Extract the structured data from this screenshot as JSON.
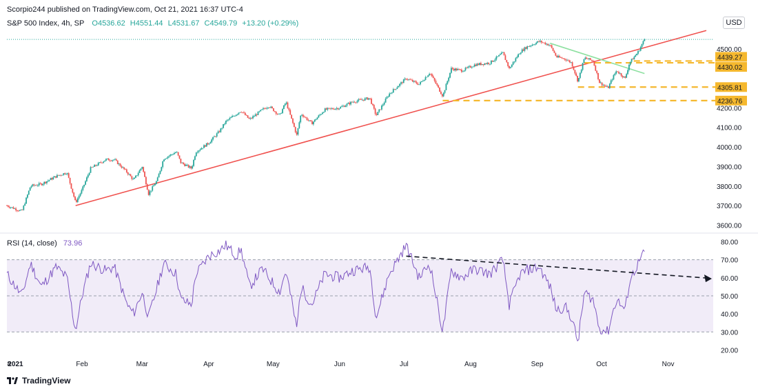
{
  "header": {
    "published": "Scorpio244 published on TradingView.com, Oct 21, 2021 16:37 UTC-4"
  },
  "legend": {
    "symbol": "S&P 500 Index, 4h, SP",
    "open": "O4536.62",
    "high": "H4551.44",
    "low": "L4531.67",
    "close": "C4549.79",
    "change": "+13.20 (+0.29%)"
  },
  "currency": "USD",
  "rsi_legend": {
    "label": "RSI (14, close)",
    "value": "73.96"
  },
  "footer": {
    "brand": "TradingView"
  },
  "colors": {
    "up": "#26a69a",
    "down": "#ef5350",
    "trendline": "#f0524f",
    "support": "#f5b82e",
    "channel": "#8de0a0",
    "rsi": "#7e57c2",
    "rsi_band": "#ede7f6"
  },
  "chart_data": [
    {
      "type": "candlestick",
      "title": "S&P 500 Index, 4h, SP",
      "x_ticks": [
        "8",
        "2021",
        "Feb",
        "Mar",
        "Apr",
        "May",
        "Jun",
        "Jul",
        "Aug",
        "Sep",
        "Oct",
        "Nov"
      ],
      "y_ticks": [
        "3600.00",
        "3700.00",
        "3800.00",
        "3900.00",
        "4000.00",
        "4100.00",
        "4200.00",
        "4300.00",
        "4400.00",
        "4500.00"
      ],
      "ylim": [
        3570,
        4610
      ],
      "price_labels": [
        {
          "value": 4439.27,
          "label": "4439.27"
        },
        {
          "value": 4430.02,
          "label": "4430.02"
        },
        {
          "value": 4305.81,
          "label": "4305.81"
        },
        {
          "value": 4236.76,
          "label": "4236.76"
        }
      ],
      "last_close": 4549.79,
      "approx_close_path": [
        [
          "Dec 28",
          3700
        ],
        [
          "Jan 4",
          3670
        ],
        [
          "Jan 8",
          3800
        ],
        [
          "Jan 13",
          3810
        ],
        [
          "Jan 20",
          3850
        ],
        [
          "Jan 25",
          3870
        ],
        [
          "Jan 29",
          3715
        ],
        [
          "Feb 1",
          3780
        ],
        [
          "Feb 5",
          3890
        ],
        [
          "Feb 12",
          3935
        ],
        [
          "Feb 16",
          3935
        ],
        [
          "Feb 22",
          3870
        ],
        [
          "Feb 25",
          3830
        ],
        [
          "Mar 1",
          3900
        ],
        [
          "Mar 4",
          3760
        ],
        [
          "Mar 8",
          3830
        ],
        [
          "Mar 11",
          3940
        ],
        [
          "Mar 17",
          3975
        ],
        [
          "Mar 19",
          3920
        ],
        [
          "Mar 24",
          3890
        ],
        [
          "Mar 26",
          3975
        ],
        [
          "Apr 1",
          4020
        ],
        [
          "Apr 6",
          4080
        ],
        [
          "Apr 9",
          4130
        ],
        [
          "Apr 16",
          4185
        ],
        [
          "Apr 20",
          4140
        ],
        [
          "Apr 26",
          4190
        ],
        [
          "Apr 29",
          4210
        ],
        [
          "May 4",
          4160
        ],
        [
          "May 7",
          4230
        ],
        [
          "May 12",
          4060
        ],
        [
          "May 14",
          4170
        ],
        [
          "May 19",
          4120
        ],
        [
          "May 25",
          4190
        ],
        [
          "Jun 1",
          4200
        ],
        [
          "Jun 7",
          4230
        ],
        [
          "Jun 15",
          4250
        ],
        [
          "Jun 18",
          4160
        ],
        [
          "Jun 24",
          4270
        ],
        [
          "Jul 2",
          4350
        ],
        [
          "Jul 8",
          4320
        ],
        [
          "Jul 13",
          4380
        ],
        [
          "Jul 19",
          4260
        ],
        [
          "Jul 23",
          4400
        ],
        [
          "Jul 28",
          4390
        ],
        [
          "Aug 3",
          4420
        ],
        [
          "Aug 10",
          4430
        ],
        [
          "Aug 16",
          4480
        ],
        [
          "Aug 19",
          4400
        ],
        [
          "Aug 24",
          4485
        ],
        [
          "Aug 27",
          4510
        ],
        [
          "Sep 2",
          4540
        ],
        [
          "Sep 7",
          4520
        ],
        [
          "Sep 10",
          4460
        ],
        [
          "Sep 14",
          4450
        ],
        [
          "Sep 17",
          4430
        ],
        [
          "Sep 20",
          4335
        ],
        [
          "Sep 23",
          4455
        ],
        [
          "Sep 27",
          4440
        ],
        [
          "Sep 30",
          4330
        ],
        [
          "Oct 4",
          4300
        ],
        [
          "Oct 6",
          4350
        ],
        [
          "Oct 8",
          4390
        ],
        [
          "Oct 12",
          4350
        ],
        [
          "Oct 14",
          4430
        ],
        [
          "Oct 18",
          4485
        ],
        [
          "Oct 21",
          4549.79
        ]
      ]
    },
    {
      "type": "line",
      "title": "RSI (14, close)",
      "y_ticks": [
        "20.00",
        "30.00",
        "40.00",
        "50.00",
        "60.00",
        "70.00",
        "80.00"
      ],
      "ylim": [
        16,
        84
      ],
      "band": [
        30,
        70
      ],
      "midline": 50,
      "last_value": 73.96,
      "approx_values": [
        [
          "Dec 28",
          62
        ],
        [
          "Jan 4",
          50
        ],
        [
          "Jan 8",
          68
        ],
        [
          "Jan 13",
          55
        ],
        [
          "Jan 20",
          66
        ],
        [
          "Jan 25",
          60
        ],
        [
          "Jan 28",
          37
        ],
        [
          "Jan 29",
          31
        ],
        [
          "Feb 1",
          50
        ],
        [
          "Feb 5",
          68
        ],
        [
          "Feb 12",
          64
        ],
        [
          "Feb 16",
          66
        ],
        [
          "Feb 22",
          45
        ],
        [
          "Feb 25",
          40
        ],
        [
          "Mar 1",
          52
        ],
        [
          "Mar 4",
          38
        ],
        [
          "Mar 8",
          55
        ],
        [
          "Mar 11",
          68
        ],
        [
          "Mar 17",
          62
        ],
        [
          "Mar 19",
          48
        ],
        [
          "Mar 24",
          45
        ],
        [
          "Mar 26",
          62
        ],
        [
          "Apr 1",
          72
        ],
        [
          "Apr 6",
          75
        ],
        [
          "Apr 9",
          78
        ],
        [
          "Apr 14",
          72
        ],
        [
          "Apr 16",
          76
        ],
        [
          "Apr 20",
          55
        ],
        [
          "Apr 26",
          65
        ],
        [
          "May 4",
          52
        ],
        [
          "May 7",
          64
        ],
        [
          "May 12",
          32
        ],
        [
          "May 14",
          55
        ],
        [
          "May 19",
          45
        ],
        [
          "May 25",
          62
        ],
        [
          "Jun 1",
          60
        ],
        [
          "Jun 7",
          64
        ],
        [
          "Jun 15",
          66
        ],
        [
          "Jun 18",
          38
        ],
        [
          "Jun 24",
          62
        ],
        [
          "Jul 2",
          78
        ],
        [
          "Jul 8",
          60
        ],
        [
          "Jul 13",
          68
        ],
        [
          "Jul 19",
          30
        ],
        [
          "Jul 23",
          64
        ],
        [
          "Jul 28",
          60
        ],
        [
          "Aug 3",
          65
        ],
        [
          "Aug 10",
          62
        ],
        [
          "Aug 16",
          70
        ],
        [
          "Aug 19",
          45
        ],
        [
          "Aug 24",
          62
        ],
        [
          "Aug 27",
          64
        ],
        [
          "Sep 2",
          66
        ],
        [
          "Sep 7",
          55
        ],
        [
          "Sep 10",
          42
        ],
        [
          "Sep 14",
          44
        ],
        [
          "Sep 17",
          38
        ],
        [
          "Sep 20",
          24
        ],
        [
          "Sep 23",
          52
        ],
        [
          "Sep 27",
          48
        ],
        [
          "Sep 30",
          32
        ],
        [
          "Oct 4",
          30
        ],
        [
          "Oct 6",
          40
        ],
        [
          "Oct 8",
          48
        ],
        [
          "Oct 12",
          42
        ],
        [
          "Oct 14",
          58
        ],
        [
          "Oct 18",
          68
        ],
        [
          "Oct 21",
          73.96
        ]
      ]
    }
  ]
}
